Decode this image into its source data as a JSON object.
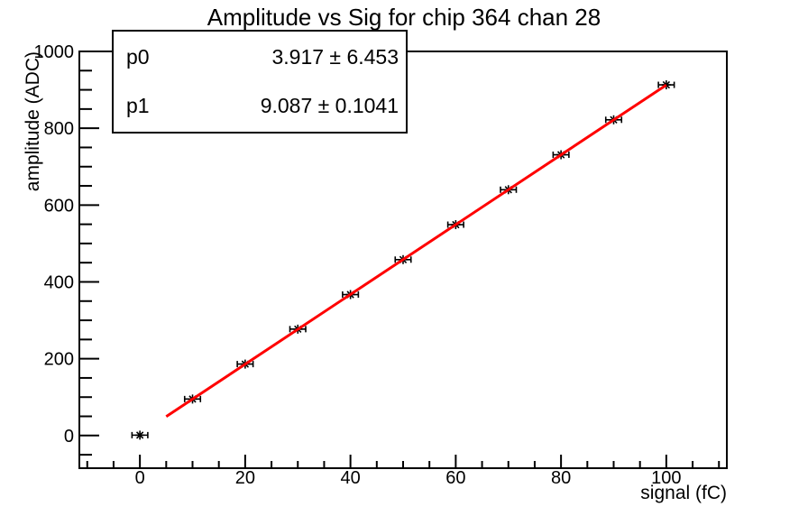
{
  "title": "Amplitude vs Sig for chip 364 chan 28",
  "stats_box": {
    "rows": [
      {
        "name": "p0",
        "value": "3.917 ± 6.453"
      },
      {
        "name": "p1",
        "value": "9.087 ± 0.1041"
      }
    ]
  },
  "chart_data": {
    "type": "scatter",
    "title": "Amplitude vs Sig for chip 364 chan 28",
    "xlabel": "signal (fC)",
    "ylabel": "amplitude (ADC)",
    "xlim": [
      -11.5,
      111.5
    ],
    "ylim": [
      -85,
      1000
    ],
    "x_major_ticks": [
      0,
      20,
      40,
      60,
      80,
      100
    ],
    "x_minor_step": 5,
    "y_major_ticks": [
      0,
      200,
      400,
      600,
      800,
      1000
    ],
    "y_minor_step": 50,
    "grid": false,
    "legend": "none",
    "marker": "asterisk",
    "points": {
      "x": [
        0,
        10,
        20,
        30,
        40,
        50,
        60,
        70,
        80,
        90,
        100
      ],
      "y": [
        1,
        95,
        186,
        277,
        367,
        458,
        549,
        640,
        731,
        822,
        913
      ],
      "x_error": 1.5
    },
    "fit": {
      "type": "linear",
      "p0": 3.917,
      "p0_err": 6.453,
      "p1": 9.087,
      "p1_err": 0.1041,
      "range": [
        5,
        100
      ]
    },
    "colors": {
      "fit_line": "#ff0000",
      "marker": "#000000",
      "frame": "#000000",
      "background": "#ffffff"
    }
  }
}
